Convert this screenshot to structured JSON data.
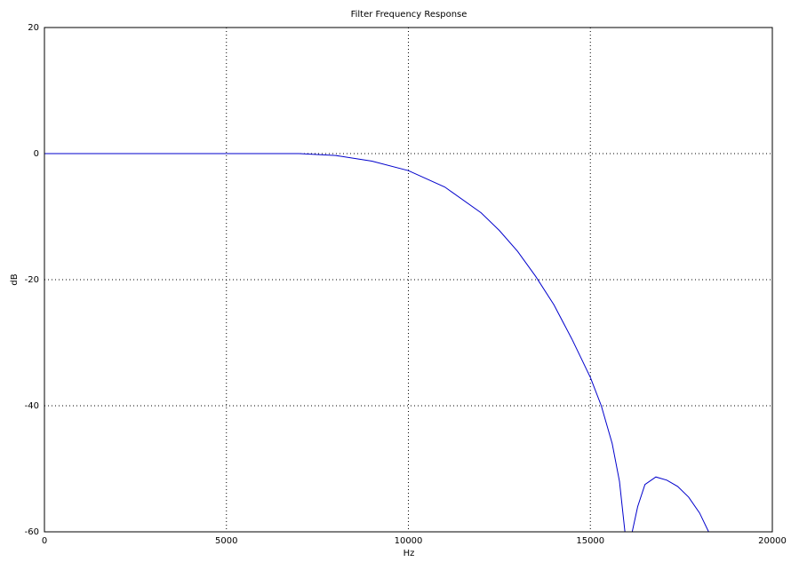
{
  "chart_data": {
    "type": "line",
    "title": "Filter Frequency Response",
    "x_label": "Hz",
    "y_label": "dB",
    "x": [
      0,
      2000,
      4000,
      6000,
      7000,
      8000,
      9000,
      10000,
      11000,
      12000,
      12500,
      13000,
      13500,
      14000,
      14500,
      15000,
      15300,
      15600,
      15800,
      15950,
      16050,
      16150,
      16300,
      16500,
      16800,
      17100,
      17400,
      17700,
      18000,
      18250
    ],
    "series": [
      {
        "color": "#0000cc",
        "values": [
          0,
          0,
          0,
          0,
          0,
          -0.3,
          -1.2,
          -2.7,
          -5.3,
          -9.4,
          -12.2,
          -15.5,
          -19.5,
          -24,
          -29.5,
          -35.5,
          -40,
          -46,
          -52,
          -60,
          null,
          -60,
          -56,
          -52.5,
          -51.3,
          -51.8,
          -52.8,
          -54.5,
          -57,
          -60
        ]
      }
    ],
    "xlim": [
      0,
      20000
    ],
    "xticks": [
      0,
      5000,
      10000,
      15000,
      20000
    ],
    "ylim": [
      -60,
      20
    ],
    "yticks": [
      -60,
      -40,
      -20,
      0,
      20
    ],
    "grid": true
  }
}
